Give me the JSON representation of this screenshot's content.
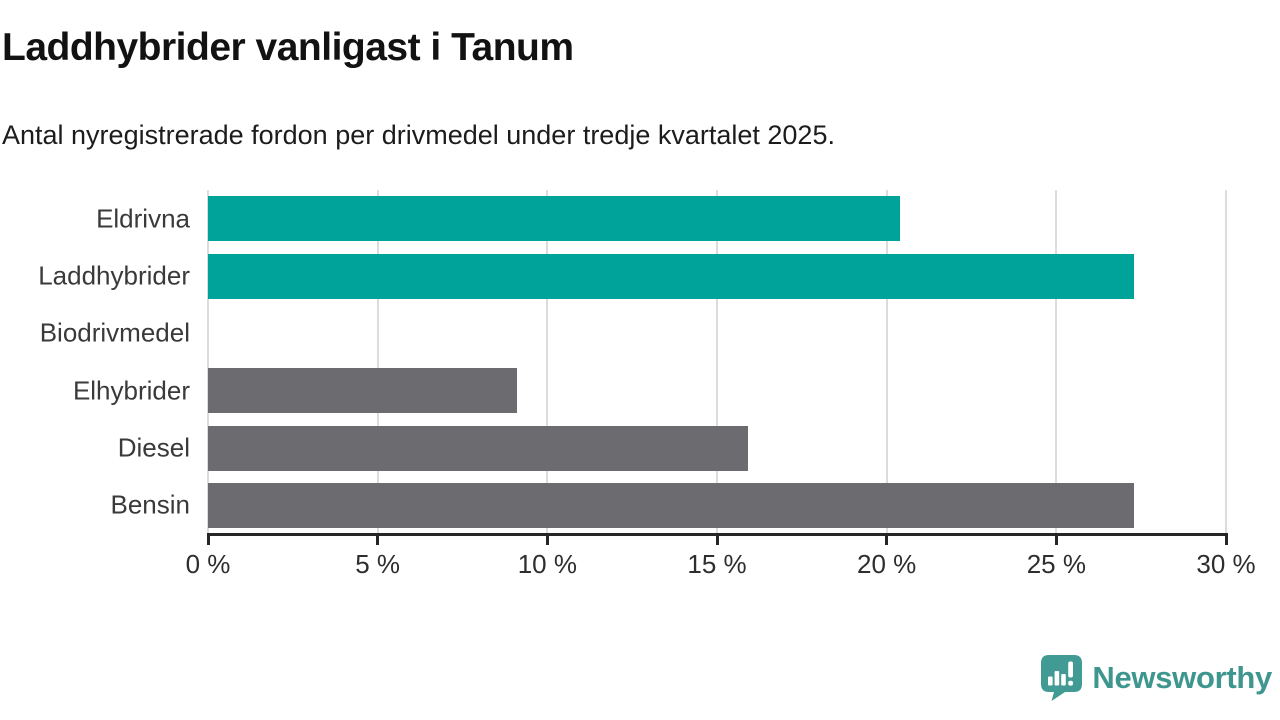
{
  "header": {
    "title": "Laddhybrider vanligast i Tanum",
    "subtitle": "Antal nyregistrerade fordon per drivmedel under tredje kvartalet 2025."
  },
  "chart_data": {
    "type": "bar",
    "orientation": "horizontal",
    "title": "Laddhybrider vanligast i Tanum",
    "subtitle": "Antal nyregistrerade fordon per drivmedel under tredje kvartalet 2025.",
    "categories": [
      "Eldrivna",
      "Laddhybrider",
      "Biodrivmedel",
      "Elhybrider",
      "Diesel",
      "Bensin"
    ],
    "values": [
      20.4,
      27.3,
      0,
      9.1,
      15.9,
      27.3
    ],
    "bar_colors": [
      "#00a39a",
      "#00a39a",
      "#6b6b70",
      "#6b6b70",
      "#6b6b70",
      "#6b6b70"
    ],
    "xlabel": "",
    "ylabel": "",
    "xlim": [
      0,
      30
    ],
    "ticks": [
      0,
      5,
      10,
      15,
      20,
      25,
      30
    ],
    "tick_labels": [
      "0 %",
      "5 %",
      "10 %",
      "15 %",
      "20 %",
      "25 %",
      "30 %"
    ],
    "grid": true,
    "legend": false
  },
  "colors": {
    "highlight_bar": "#00a39a",
    "default_bar": "#6b6b70",
    "gridline": "#dcdcdc",
    "axis": "#262626",
    "brand": "#3e968f"
  },
  "footer": {
    "brand": "Newsworthy",
    "logo_icon": "speech-bubble-bar-chart-icon"
  }
}
